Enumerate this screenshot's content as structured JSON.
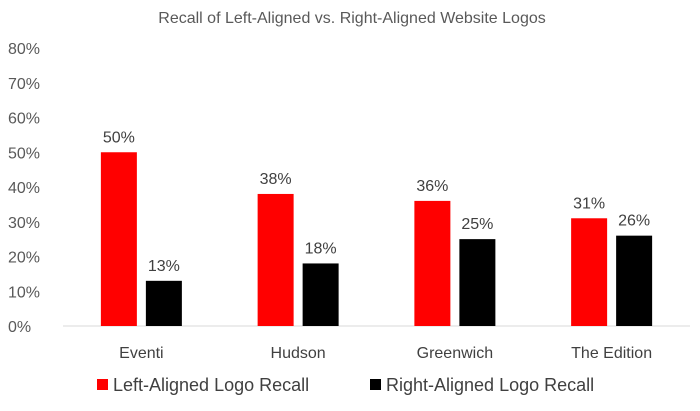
{
  "chart_data": {
    "type": "bar",
    "title": "Recall of Left-Aligned vs. Right-Aligned Website Logos",
    "xlabel": "",
    "ylabel": "",
    "categories": [
      "Eventi",
      "Hudson",
      "Greenwich",
      "The Edition"
    ],
    "series": [
      {
        "name": "Left-Aligned Logo Recall",
        "color": "#ff0000",
        "values": [
          50,
          38,
          36,
          31
        ],
        "labels": [
          "50%",
          "38%",
          "36%",
          "31%"
        ]
      },
      {
        "name": "Right-Aligned Logo Recall",
        "color": "#000000",
        "values": [
          13,
          18,
          25,
          26
        ],
        "labels": [
          "13%",
          "18%",
          "25%",
          "26%"
        ]
      }
    ],
    "ylim": [
      0,
      80
    ],
    "yticks": [
      {
        "value": 0,
        "label": "0%"
      },
      {
        "value": 10,
        "label": "10%"
      },
      {
        "value": 20,
        "label": "20%"
      },
      {
        "value": 30,
        "label": "30%"
      },
      {
        "value": 40,
        "label": "40%"
      },
      {
        "value": 50,
        "label": "50%"
      },
      {
        "value": 60,
        "label": "60%"
      },
      {
        "value": 70,
        "label": "70%"
      },
      {
        "value": 80,
        "label": "80%"
      }
    ],
    "grid": false,
    "legend_position": "bottom"
  }
}
